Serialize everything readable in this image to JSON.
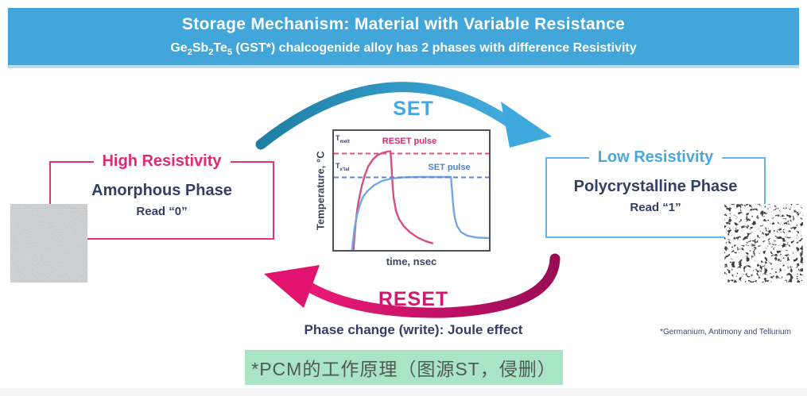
{
  "header": {
    "bg_color": "#42A6DB",
    "text_color": "#ffffff",
    "title": "Storage Mechanism: Material with Variable Resistance",
    "subtitle_segments": [
      {
        "t": "Ge",
        "sub": false
      },
      {
        "t": "2",
        "sub": true
      },
      {
        "t": "Sb",
        "sub": false
      },
      {
        "t": "2",
        "sub": true
      },
      {
        "t": "Te",
        "sub": false
      },
      {
        "t": "5",
        "sub": true
      },
      {
        "t": " (GST*) chalcogenide alloy has 2 phases with difference Resistivity",
        "sub": false
      }
    ]
  },
  "cycle": {
    "set_label": "SET",
    "reset_label": "RESET",
    "set_color": "#45A8DC",
    "set_gradient": [
      "#1E7FA4",
      "#42ABDF"
    ],
    "reset_color": "#D5186E",
    "reset_gradient": [
      "#9A0B56",
      "#EE1A78"
    ]
  },
  "chart_data": {
    "type": "line",
    "title": "",
    "xlabel": "time, nsec",
    "ylabel": "Temperature, °C",
    "x_range": [
      0,
      100
    ],
    "y_range": [
      0,
      100
    ],
    "grid": false,
    "legend_position": "inline-annotations",
    "ref_lines": [
      {
        "base": "T",
        "sub": "melt",
        "y": 81,
        "color": "#E0517F",
        "style": "dashed",
        "annotation": "RESET pulse"
      },
      {
        "base": "T",
        "sub": "x'tal",
        "y": 61,
        "color": "#5C86D8",
        "style": "dashed",
        "annotation": "SET pulse"
      }
    ],
    "series": [
      {
        "name": "RESET pulse",
        "color": "#D84E7E",
        "points": [
          [
            12.5,
            -2
          ],
          [
            13,
            8
          ],
          [
            14,
            22
          ],
          [
            15,
            34
          ],
          [
            16.5,
            45
          ],
          [
            18,
            54
          ],
          [
            20,
            63
          ],
          [
            22,
            70
          ],
          [
            25,
            76
          ],
          [
            28,
            79.5
          ],
          [
            31,
            81.5
          ],
          [
            34,
            82.5
          ],
          [
            36.5,
            83
          ],
          [
            37.2,
            70
          ],
          [
            37.8,
            55
          ],
          [
            38.5,
            44
          ],
          [
            40,
            33
          ],
          [
            42,
            26
          ],
          [
            45,
            20
          ],
          [
            49,
            15
          ],
          [
            54,
            10.5
          ],
          [
            59,
            7.5
          ],
          [
            64,
            5.5
          ]
        ]
      },
      {
        "name": "SET pulse",
        "color": "#74A7E2",
        "points": [
          [
            11.5,
            -2
          ],
          [
            12.5,
            10
          ],
          [
            13.5,
            20
          ],
          [
            15,
            30
          ],
          [
            17,
            39
          ],
          [
            19,
            45
          ],
          [
            22,
            50
          ],
          [
            26,
            54.5
          ],
          [
            31,
            58
          ],
          [
            37,
            60
          ],
          [
            44,
            61
          ],
          [
            55,
            61.3
          ],
          [
            70,
            61.3
          ],
          [
            75.5,
            61.3
          ],
          [
            76.3,
            48
          ],
          [
            77,
            36
          ],
          [
            78,
            27
          ],
          [
            79.5,
            20
          ],
          [
            82,
            15
          ],
          [
            86,
            12
          ],
          [
            92,
            10.5
          ],
          [
            100,
            10
          ]
        ]
      }
    ]
  },
  "left_panel": {
    "title": "High Resistivity",
    "title_color": "#E02A72",
    "border_color": "#E8307A",
    "phase": "Amorphous Phase",
    "read": "Read “0”",
    "texture": "gray-grain-micrograph"
  },
  "right_panel": {
    "title": "Low Resistivity",
    "title_color": "#48A9DD",
    "border_color": "#62B5E4",
    "phase": "Polycrystalline Phase",
    "read": "Read “1”",
    "texture": "black-white-speckle-micrograph"
  },
  "captions": {
    "joule": "Phase change (write): Joule effect",
    "footnote": "*Germanium, Antimony and Tellurium",
    "caption_cn": "*PCM的工作原理（图源ST，侵删）",
    "caption_bg": "#A9E4C4",
    "caption_text_color": "#4E5A54"
  }
}
